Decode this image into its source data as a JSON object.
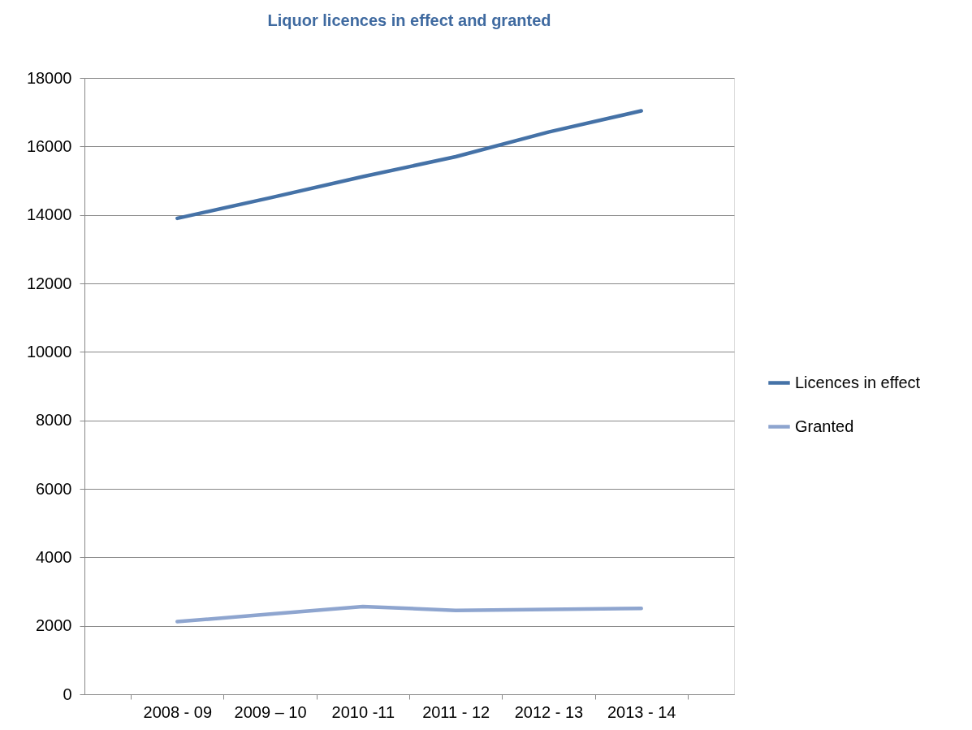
{
  "chart_data": {
    "type": "line",
    "title": "Liquor licences in effect and granted",
    "categories": [
      "2008 - 09",
      "2009 – 10",
      "2010 -11",
      "2011 - 12",
      "2012 - 13",
      "2013 - 14"
    ],
    "series": [
      {
        "name": "Licences in effect",
        "color": "#4572a7",
        "values": [
          13900,
          14500,
          15120,
          15700,
          16420,
          17040
        ]
      },
      {
        "name": "Granted",
        "color": "#8ea5cf",
        "values": [
          2120,
          2340,
          2560,
          2450,
          2480,
          2510
        ]
      }
    ],
    "ylim": [
      0,
      18000
    ],
    "yticks": [
      0,
      2000,
      4000,
      6000,
      8000,
      10000,
      12000,
      14000,
      16000,
      18000
    ],
    "grid": "y",
    "legend": "right",
    "marker": "none",
    "line_style": "solid"
  }
}
